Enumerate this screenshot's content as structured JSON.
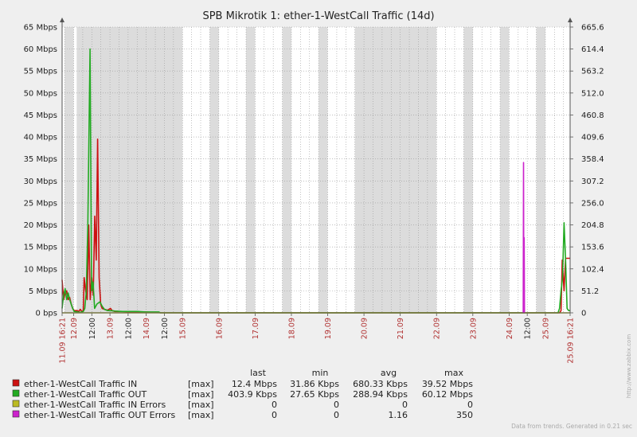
{
  "chart_data": {
    "type": "line",
    "title": "SPB Mikrotik 1: ether-1-WestCall Traffic (14d)",
    "y_left": {
      "unit": "Mbps",
      "min": 0,
      "max": 65,
      "ticks": [
        "0 bps",
        "5 Mbps",
        "10 Mbps",
        "15 Mbps",
        "20 Mbps",
        "25 Mbps",
        "30 Mbps",
        "35 Mbps",
        "40 Mbps",
        "45 Mbps",
        "50 Mbps",
        "55 Mbps",
        "60 Mbps",
        "65 Mbps"
      ]
    },
    "y_right": {
      "min": 0,
      "max": 665.6,
      "ticks": [
        "0",
        "51.2",
        "102.4",
        "153.6",
        "204.8",
        "256.0",
        "307.2",
        "358.4",
        "409.6",
        "460.8",
        "512.0",
        "563.2",
        "614.4",
        "665.6"
      ]
    },
    "x_range_hours": [
      0,
      336
    ],
    "x_tick_labels": [
      {
        "h": 0,
        "label": "11.09 16:21",
        "kind": "edge"
      },
      {
        "h": 7.65,
        "label": "12.09",
        "kind": "date"
      },
      {
        "h": 19.65,
        "label": "12:00",
        "kind": "time"
      },
      {
        "h": 31.65,
        "label": "13.09",
        "kind": "date"
      },
      {
        "h": 43.65,
        "label": "12:00",
        "kind": "time"
      },
      {
        "h": 55.65,
        "label": "14.09",
        "kind": "date"
      },
      {
        "h": 67.65,
        "label": "12:00",
        "kind": "time"
      },
      {
        "h": 79.65,
        "label": "15.09",
        "kind": "date"
      },
      {
        "h": 103.65,
        "label": "16.09",
        "kind": "date"
      },
      {
        "h": 127.65,
        "label": "17.09",
        "kind": "date"
      },
      {
        "h": 151.65,
        "label": "18.09",
        "kind": "date"
      },
      {
        "h": 175.65,
        "label": "19.09",
        "kind": "date"
      },
      {
        "h": 199.65,
        "label": "20.09",
        "kind": "date"
      },
      {
        "h": 223.65,
        "label": "21.09",
        "kind": "date"
      },
      {
        "h": 247.65,
        "label": "22.09",
        "kind": "date"
      },
      {
        "h": 271.65,
        "label": "23.09",
        "kind": "date"
      },
      {
        "h": 295.65,
        "label": "24.09",
        "kind": "date"
      },
      {
        "h": 307.65,
        "label": "12:00",
        "kind": "time"
      },
      {
        "h": 319.65,
        "label": "25.09",
        "kind": "date"
      },
      {
        "h": 336,
        "label": "25.09 16:21",
        "kind": "edge"
      }
    ],
    "grey_bands_hours": [
      [
        1.65,
        7.65
      ],
      [
        9.65,
        31.65
      ],
      [
        31.65,
        79.65
      ],
      [
        97.65,
        103.65
      ],
      [
        121.65,
        127.65
      ],
      [
        145.65,
        151.65
      ],
      [
        169.65,
        175.65
      ],
      [
        193.65,
        247.65
      ],
      [
        265.65,
        271.65
      ],
      [
        289.65,
        295.65
      ],
      [
        313.65,
        319.65
      ]
    ],
    "series": [
      {
        "name": "ether-1-WestCall Traffic IN",
        "color": "#cc1111",
        "axis": "left",
        "points": [
          [
            0,
            7.5
          ],
          [
            1,
            3
          ],
          [
            2,
            4.5
          ],
          [
            3,
            5
          ],
          [
            4,
            3
          ],
          [
            5,
            3.5
          ],
          [
            6,
            2
          ],
          [
            7,
            1
          ],
          [
            8,
            0.5
          ],
          [
            10,
            0.5
          ],
          [
            11,
            0.3
          ],
          [
            12,
            0.8
          ],
          [
            13,
            0.3
          ],
          [
            14,
            0.5
          ],
          [
            14.6,
            8
          ],
          [
            15.6,
            5
          ],
          [
            16.6,
            3
          ],
          [
            17.6,
            20
          ],
          [
            18.6,
            3
          ],
          [
            19.6,
            8
          ],
          [
            20.6,
            4
          ],
          [
            21.6,
            22
          ],
          [
            22.6,
            12
          ],
          [
            23.5,
            39.5
          ],
          [
            24.5,
            8
          ],
          [
            25.5,
            2
          ],
          [
            26.5,
            1
          ],
          [
            28,
            0.8
          ],
          [
            30,
            0.6
          ],
          [
            32,
            1
          ],
          [
            33,
            0.5
          ],
          [
            35,
            0.3
          ],
          [
            40,
            0.3
          ],
          [
            45,
            0.2
          ],
          [
            55,
            0.2
          ],
          [
            60,
            0.1
          ],
          [
            64,
            0.1
          ],
          [
            65,
            0
          ],
          [
            329,
            0
          ],
          [
            330,
            0.5
          ],
          [
            330.8,
            12
          ],
          [
            332,
            5
          ],
          [
            333,
            12.4
          ],
          [
            336,
            12.4
          ]
        ]
      },
      {
        "name": "ether-1-WestCall Traffic OUT",
        "color": "#22aa22",
        "axis": "left",
        "points": [
          [
            0,
            1
          ],
          [
            1,
            4
          ],
          [
            2,
            5.5
          ],
          [
            3,
            3
          ],
          [
            4,
            4.5
          ],
          [
            5,
            3
          ],
          [
            6,
            2
          ],
          [
            7,
            1
          ],
          [
            8,
            0.3
          ],
          [
            12,
            0.1
          ],
          [
            14,
            0.3
          ],
          [
            15,
            1
          ],
          [
            16,
            5
          ],
          [
            17,
            20
          ],
          [
            18.5,
            60
          ],
          [
            19.5,
            5
          ],
          [
            20.5,
            7
          ],
          [
            21.5,
            1
          ],
          [
            23,
            2
          ],
          [
            25,
            2.5
          ],
          [
            26.5,
            1.5
          ],
          [
            28,
            0.8
          ],
          [
            30,
            0.5
          ],
          [
            32,
            0.5
          ],
          [
            35,
            0.4
          ],
          [
            40,
            0.3
          ],
          [
            50,
            0.3
          ],
          [
            55,
            0.2
          ],
          [
            64,
            0.2
          ],
          [
            65,
            0
          ],
          [
            328,
            0
          ],
          [
            329,
            1
          ],
          [
            330,
            5
          ],
          [
            331,
            8
          ],
          [
            332,
            20.5
          ],
          [
            333,
            12
          ],
          [
            334,
            1
          ],
          [
            335,
            0.5
          ],
          [
            336,
            0.5
          ]
        ]
      },
      {
        "name": "ether-1-WestCall Traffic IN Errors",
        "color": "#bbbb22",
        "axis": "right",
        "points": [
          [
            0,
            0
          ],
          [
            336,
            0
          ]
        ]
      },
      {
        "name": "ether-1-WestCall Traffic OUT Errors",
        "color": "#cc22cc",
        "axis": "right",
        "points": [
          [
            305,
            0
          ],
          [
            305.2,
            350
          ],
          [
            305.4,
            0
          ],
          [
            305.6,
            175
          ],
          [
            305.8,
            0
          ]
        ]
      }
    ]
  },
  "legend": {
    "headers": {
      "last": "last",
      "min": "min",
      "avg": "avg",
      "max": "max"
    },
    "rows": [
      {
        "swatch": "#cc1111",
        "name": "ether-1-WestCall Traffic IN",
        "agg": "[max]",
        "last": "12.4 Mbps",
        "min": "31.86 Kbps",
        "avg": "680.33 Kbps",
        "max": "39.52 Mbps"
      },
      {
        "swatch": "#22aa22",
        "name": "ether-1-WestCall Traffic OUT",
        "agg": "[max]",
        "last": "403.9 Kbps",
        "min": "27.65 Kbps",
        "avg": "288.94 Kbps",
        "max": "60.12 Mbps"
      },
      {
        "swatch": "#bbbb22",
        "name": "ether-1-WestCall Traffic IN Errors",
        "agg": "[max]",
        "last": "0",
        "min": "0",
        "avg": "0",
        "max": "0"
      },
      {
        "swatch": "#cc22cc",
        "name": "ether-1-WestCall Traffic OUT Errors",
        "agg": "[max]",
        "last": "0",
        "min": "0",
        "avg": "1.16",
        "max": "350"
      }
    ]
  },
  "side_text": "http://www.zabbix.com",
  "footer_text": "Data from trends. Generated in 0.21 sec"
}
